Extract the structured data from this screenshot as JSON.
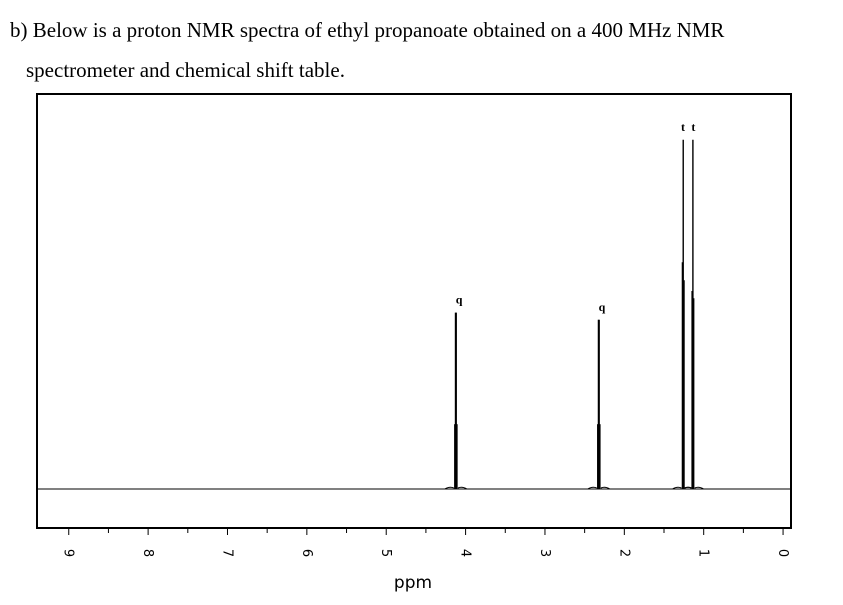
{
  "question": {
    "line1": "b) Below is a proton NMR spectra of ethyl propanoate obtained on a 400 MHz NMR",
    "line2": "spectrometer and chemical shift table."
  },
  "chart_data": {
    "type": "line",
    "xlabel": "ppm",
    "xlim": [
      9.4,
      -0.1
    ],
    "x_reversed": true,
    "tick_values": [
      9,
      8,
      7,
      6,
      5,
      4,
      3,
      2,
      1,
      0
    ],
    "tick_labels": [
      "9",
      "8",
      "7",
      "6",
      "5",
      "4",
      "3",
      "2",
      "1",
      "0"
    ],
    "ylim": [
      0,
      1.0
    ],
    "grid": false,
    "peaks": [
      {
        "label": "q",
        "shift": 4.12,
        "multiplicity": "quartet",
        "lines": [
          {
            "ppm": 4.136,
            "height": 0.18
          },
          {
            "ppm": 4.127,
            "height": 0.49
          },
          {
            "ppm": 4.118,
            "height": 0.49
          },
          {
            "ppm": 4.109,
            "height": 0.18
          }
        ]
      },
      {
        "label": "q",
        "shift": 2.32,
        "multiplicity": "quartet",
        "lines": [
          {
            "ppm": 2.335,
            "height": 0.18
          },
          {
            "ppm": 2.326,
            "height": 0.47
          },
          {
            "ppm": 2.317,
            "height": 0.47
          },
          {
            "ppm": 2.308,
            "height": 0.18
          }
        ]
      },
      {
        "label": "t",
        "shift": 1.26,
        "multiplicity": "triplet",
        "lines": [
          {
            "ppm": 1.268,
            "height": 0.63
          },
          {
            "ppm": 1.258,
            "height": 0.97
          },
          {
            "ppm": 1.248,
            "height": 0.58
          }
        ]
      },
      {
        "label": "t",
        "shift": 1.13,
        "multiplicity": "triplet",
        "lines": [
          {
            "ppm": 1.146,
            "height": 0.55
          },
          {
            "ppm": 1.136,
            "height": 0.97
          },
          {
            "ppm": 1.126,
            "height": 0.53
          }
        ]
      }
    ]
  }
}
